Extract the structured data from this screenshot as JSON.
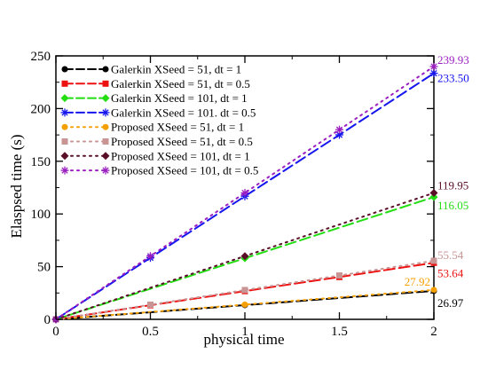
{
  "chart_data": {
    "type": "line",
    "title": "",
    "xlabel": "physical time",
    "ylabel": "Elaspsed time (s)",
    "xlim": [
      0,
      2
    ],
    "ylim": [
      0,
      250
    ],
    "xticks": [
      0,
      0.5,
      1,
      1.5,
      2
    ],
    "xtick_labels": [
      "0",
      "0.5",
      "1",
      "1.5",
      "2"
    ],
    "yticks": [
      0,
      50,
      100,
      150,
      200,
      250
    ],
    "ytick_labels": [
      "0",
      "50",
      "100",
      "150",
      "200",
      "250"
    ],
    "grid": false,
    "legend_position": "top-left",
    "series": [
      {
        "name": "Galerkin XSeed = 51, dt = 1",
        "color": "#000000",
        "dash": "long-dash",
        "marker": "circle",
        "x": [
          0,
          1,
          2
        ],
        "y": [
          0,
          13.5,
          26.97
        ]
      },
      {
        "name": "Galerkin XSeed = 51, dt = 0.5",
        "color": "#ee1111",
        "dash": "long-dash",
        "marker": "square",
        "x": [
          0,
          0.5,
          1,
          1.5,
          2
        ],
        "y": [
          0,
          13.4,
          26.8,
          40.2,
          53.64
        ]
      },
      {
        "name": "Galerkin XSeed = 101, dt = 1",
        "color": "#22dd11",
        "dash": "long-dash",
        "marker": "diamond",
        "x": [
          0,
          1,
          2
        ],
        "y": [
          0,
          58.0,
          116.05
        ]
      },
      {
        "name": "Galerkin XSeed = 101. dt = 0.5",
        "color": "#1515ee",
        "dash": "long-dash",
        "marker": "asterisk",
        "x": [
          0,
          0.5,
          1,
          1.5,
          2
        ],
        "y": [
          0,
          58.4,
          116.8,
          175.1,
          233.5
        ]
      },
      {
        "name": "Proposed XSeed = 51, dt = 1",
        "color": "#f5a000",
        "dash": "dot",
        "marker": "circle",
        "x": [
          0,
          1,
          2
        ],
        "y": [
          0,
          14.0,
          27.92
        ]
      },
      {
        "name": "Proposed XSeed = 51, dt = 0.5",
        "color": "#c89494",
        "dash": "dot",
        "marker": "square",
        "x": [
          0,
          0.5,
          1,
          1.5,
          2
        ],
        "y": [
          0,
          13.9,
          27.8,
          41.6,
          55.54
        ]
      },
      {
        "name": "Proposed XSeed = 101, dt = 1",
        "color": "#5a0f28",
        "dash": "dot",
        "marker": "diamond",
        "x": [
          0,
          1,
          2
        ],
        "y": [
          0,
          60.0,
          119.95
        ]
      },
      {
        "name": "Proposed XSeed = 101, dt = 0.5",
        "color": "#9b1fc0",
        "dash": "dot",
        "marker": "asterisk",
        "x": [
          0,
          0.5,
          1,
          1.5,
          2
        ],
        "y": [
          0,
          60.0,
          120.0,
          180.0,
          239.93
        ]
      }
    ],
    "annotations": [
      {
        "text": "239.93",
        "x": 2,
        "y": 239.93,
        "color": "#9b1fc0",
        "side": "right"
      },
      {
        "text": "233.50",
        "x": 2,
        "y": 233.5,
        "color": "#1515ee",
        "side": "right"
      },
      {
        "text": "119.95",
        "x": 2,
        "y": 119.95,
        "color": "#5a0f28",
        "side": "right"
      },
      {
        "text": "116.05",
        "x": 2,
        "y": 116.05,
        "color": "#22dd11",
        "side": "right"
      },
      {
        "text": "55.54",
        "x": 2,
        "y": 55.54,
        "color": "#c89494",
        "side": "right"
      },
      {
        "text": "53.64",
        "x": 2,
        "y": 53.64,
        "color": "#ee1111",
        "side": "right"
      },
      {
        "text": "27.92",
        "x": 2,
        "y": 27.92,
        "color": "#f5a000",
        "side": "left"
      },
      {
        "text": "26.97",
        "x": 2,
        "y": 26.97,
        "color": "#000000",
        "side": "right"
      }
    ]
  }
}
